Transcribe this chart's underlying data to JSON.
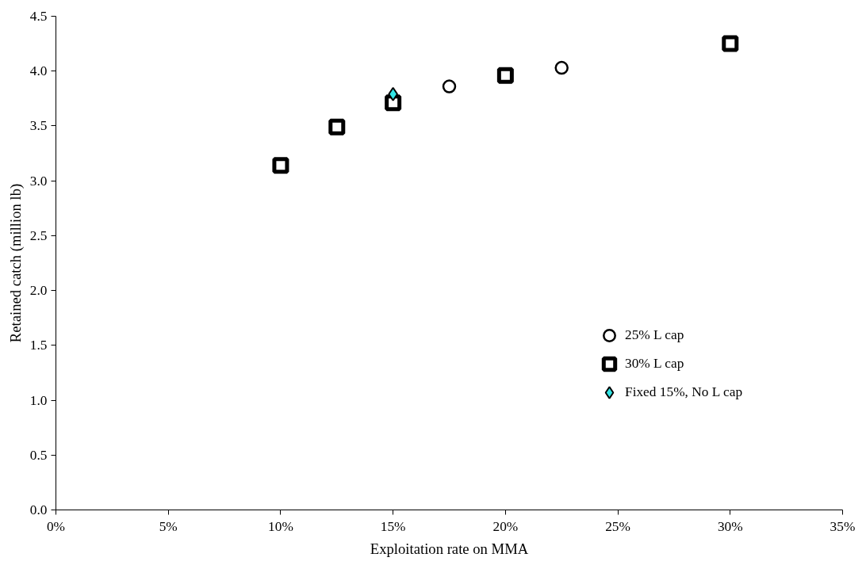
{
  "chart_data": {
    "type": "scatter",
    "xlabel": "Exploitation rate on MMA",
    "ylabel": "Retained catch (million lb)",
    "xlim": [
      0,
      35
    ],
    "xticks": [
      {
        "value": 0,
        "label": "0%"
      },
      {
        "value": 5,
        "label": "5%"
      },
      {
        "value": 10,
        "label": "10%"
      },
      {
        "value": 15,
        "label": "15%"
      },
      {
        "value": 20,
        "label": "20%"
      },
      {
        "value": 25,
        "label": "25%"
      },
      {
        "value": 30,
        "label": "30%"
      },
      {
        "value": 35,
        "label": "35%"
      }
    ],
    "ylim": [
      0,
      4.5
    ],
    "yticks": [
      {
        "value": 0,
        "label": "0.0"
      },
      {
        "value": 0.5,
        "label": "0.5"
      },
      {
        "value": 1,
        "label": "1.0"
      },
      {
        "value": 1.5,
        "label": "1.5"
      },
      {
        "value": 2,
        "label": "2.0"
      },
      {
        "value": 2.5,
        "label": "2.5"
      },
      {
        "value": 3,
        "label": "3.0"
      },
      {
        "value": 3.5,
        "label": "3.5"
      },
      {
        "value": 4,
        "label": "4.0"
      },
      {
        "value": 4.5,
        "label": "4.5"
      }
    ],
    "series": [
      {
        "name": "25% L cap",
        "color": "#ffffff",
        "marker": "circle",
        "x": [
          17.5,
          22.5
        ],
        "values": [
          3.86,
          4.03
        ]
      },
      {
        "name": "30% L cap",
        "color": "#ffffff",
        "marker": "square",
        "x": [
          10,
          12.5,
          15,
          20,
          30
        ],
        "values": [
          3.14,
          3.49,
          3.71,
          3.96,
          4.25
        ]
      },
      {
        "name": "Fixed 15%, No L cap",
        "color": "#33e6e6",
        "marker": "diamond",
        "x": [
          15
        ],
        "values": [
          3.79
        ]
      }
    ],
    "grid": false,
    "legend": "right"
  }
}
